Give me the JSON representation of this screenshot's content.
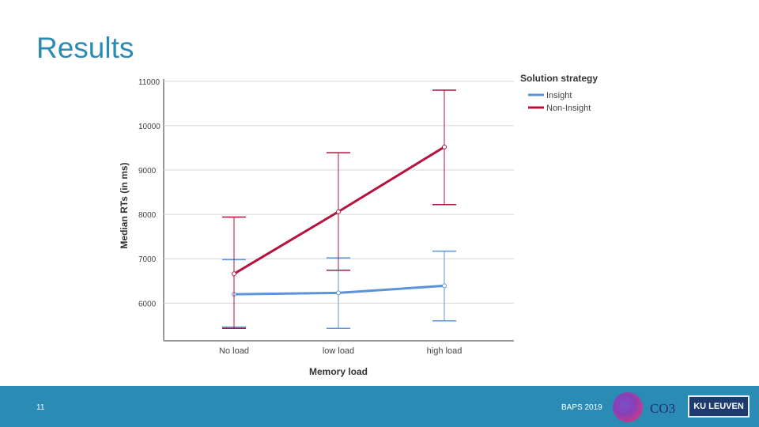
{
  "slide": {
    "title": "Results",
    "number": "11",
    "event": "BAPS 2019"
  },
  "logos": {
    "co3_text": "CO3",
    "ku_text": "KU LEUVEN"
  },
  "colors": {
    "accent": "#2a8bb5",
    "footer": "#2a8bb5",
    "insight": "#5b93d6",
    "non_insight": "#b5123e"
  },
  "chart_data": {
    "type": "line",
    "title": "",
    "xlabel": "Memory load",
    "ylabel": "Median RTs (in ms)",
    "categories": [
      "No load",
      "low load",
      "high load"
    ],
    "yticks": [
      6000,
      7000,
      8000,
      9000,
      10000,
      11000
    ],
    "ytick_labels": [
      "6000",
      "7000",
      "8000",
      "9000",
      "10000",
      "11000"
    ],
    "ylim": [
      5150,
      11050
    ],
    "grid": true,
    "legend": {
      "title": "Solution strategy",
      "position": "top-right"
    },
    "series": [
      {
        "name": "Insight",
        "color": "#5b93d6",
        "values": [
          6200,
          6230,
          6390
        ],
        "error_low": [
          5460,
          5430,
          5600
        ],
        "error_high": [
          6980,
          7020,
          7170
        ]
      },
      {
        "name": "Non-Insight",
        "color": "#b5123e",
        "values": [
          6660,
          8060,
          9520
        ],
        "error_low": [
          5430,
          6740,
          8220
        ],
        "error_high": [
          7940,
          9390,
          10800
        ]
      }
    ]
  }
}
